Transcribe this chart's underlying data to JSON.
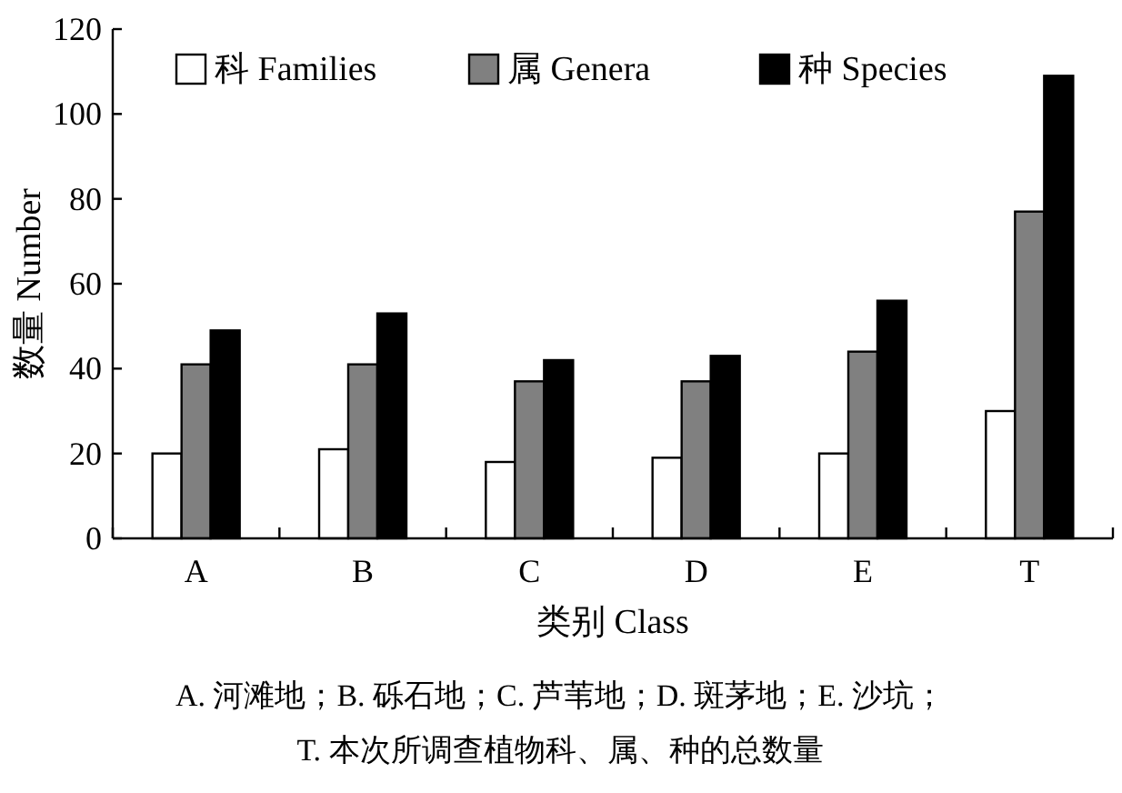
{
  "chart_data": {
    "type": "bar",
    "xlabel": "类别 Class",
    "ylabel": "数量 Number",
    "categories": [
      "A",
      "B",
      "C",
      "D",
      "E",
      "T"
    ],
    "series": [
      {
        "name": "科 Families",
        "color": "#ffffff",
        "values": [
          20,
          21,
          18,
          19,
          20,
          30
        ]
      },
      {
        "name": "属 Genera",
        "color": "#808080",
        "values": [
          41,
          41,
          37,
          37,
          44,
          77
        ]
      },
      {
        "name": "种 Species",
        "color": "#000000",
        "values": [
          49,
          53,
          42,
          43,
          56,
          109
        ]
      }
    ],
    "ylim": [
      0,
      120
    ],
    "yticks": [
      0,
      20,
      40,
      60,
      80,
      100,
      120
    ],
    "grid": false,
    "legend": "top",
    "annotations": [
      "A. 河滩地；B. 砾石地；C. 芦苇地；D. 斑茅地；E. 沙坑；",
      "T. 本次所调查植物科、属、种的总数量"
    ]
  }
}
